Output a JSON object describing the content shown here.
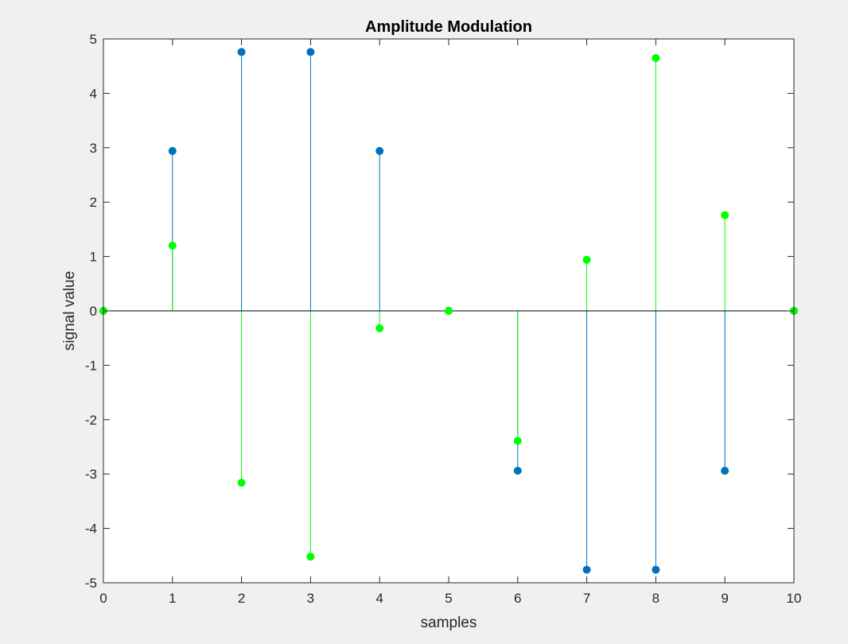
{
  "chart_data": {
    "type": "stem",
    "title": "Amplitude Modulation",
    "xlabel": "samples",
    "ylabel": "signal value",
    "xlim": [
      0,
      10
    ],
    "ylim": [
      -5,
      5
    ],
    "xticks": [
      0,
      1,
      2,
      3,
      4,
      5,
      6,
      7,
      8,
      9,
      10
    ],
    "yticks": [
      -5,
      -4,
      -3,
      -2,
      -1,
      0,
      1,
      2,
      3,
      4,
      5
    ],
    "grid": false,
    "baseline": 0,
    "series": [
      {
        "color": "#0072BD",
        "x": [
          0,
          1,
          2,
          3,
          4,
          5,
          6,
          7,
          8,
          9,
          10
        ],
        "values": [
          0,
          2.94,
          4.76,
          4.76,
          2.94,
          0,
          -2.94,
          -4.76,
          -4.76,
          -2.94,
          0
        ]
      },
      {
        "color": "#00FF00",
        "x": [
          0,
          1,
          2,
          3,
          4,
          5,
          6,
          7,
          8,
          9,
          10
        ],
        "values": [
          0,
          1.2,
          -3.16,
          -4.52,
          -0.32,
          0,
          -2.39,
          0.94,
          4.65,
          1.76,
          0
        ]
      }
    ]
  }
}
